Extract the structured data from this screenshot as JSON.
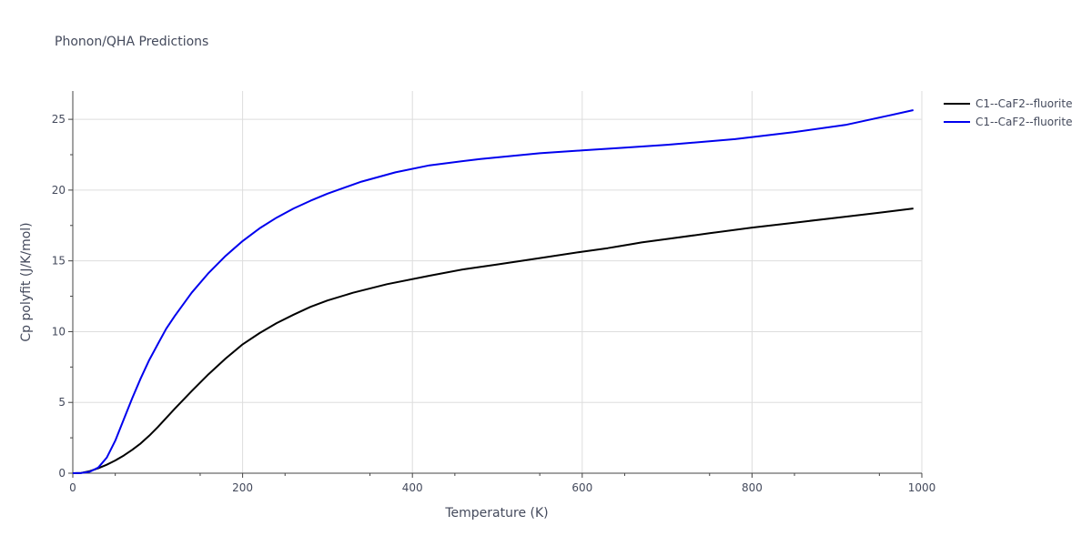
{
  "chart_data": {
    "type": "line",
    "title": "Phonon/QHA Predictions",
    "xlabel": "Temperature (K)",
    "ylabel": "Cp polyfit (J/K/mol)",
    "xlim": [
      0,
      1000
    ],
    "ylim": [
      0,
      27
    ],
    "xticks": [
      0,
      200,
      400,
      600,
      800,
      1000
    ],
    "yticks": [
      0,
      5,
      10,
      15,
      20,
      25
    ],
    "grid": true,
    "legend_position": "top-right",
    "series": [
      {
        "name": "C1--CaF2--fluorite",
        "color": "#000000",
        "x": [
          0,
          10,
          20,
          30,
          40,
          50,
          60,
          70,
          80,
          90,
          100,
          120,
          140,
          160,
          180,
          200,
          220,
          240,
          260,
          280,
          300,
          330,
          370,
          420,
          460,
          500,
          550,
          600,
          630,
          640,
          660,
          670,
          700,
          750,
          800,
          850,
          900,
          950,
          990
        ],
        "y": [
          0,
          0.02,
          0.15,
          0.35,
          0.6,
          0.9,
          1.25,
          1.65,
          2.1,
          2.65,
          3.25,
          4.55,
          5.8,
          7.0,
          8.1,
          9.1,
          9.9,
          10.6,
          11.2,
          11.75,
          12.2,
          12.75,
          13.35,
          13.95,
          14.4,
          14.75,
          15.2,
          15.65,
          15.9,
          16.0,
          16.2,
          16.3,
          16.55,
          16.95,
          17.35,
          17.7,
          18.05,
          18.4,
          18.7
        ]
      },
      {
        "name": "C1--CaF2--fluorite",
        "color": "#0000ee",
        "x": [
          0,
          10,
          20,
          30,
          40,
          50,
          60,
          70,
          80,
          90,
          100,
          110,
          120,
          140,
          160,
          180,
          200,
          220,
          240,
          260,
          280,
          300,
          340,
          380,
          420,
          480,
          550,
          600,
          650,
          700,
          780,
          850,
          910,
          960,
          990
        ],
        "y": [
          0,
          0.02,
          0.1,
          0.4,
          1.1,
          2.3,
          3.8,
          5.3,
          6.7,
          8.0,
          9.1,
          10.2,
          11.1,
          12.75,
          14.15,
          15.35,
          16.4,
          17.3,
          18.05,
          18.7,
          19.25,
          19.75,
          20.6,
          21.25,
          21.75,
          22.2,
          22.6,
          22.8,
          23.0,
          23.2,
          23.6,
          24.1,
          24.6,
          25.25,
          25.65
        ]
      }
    ]
  }
}
